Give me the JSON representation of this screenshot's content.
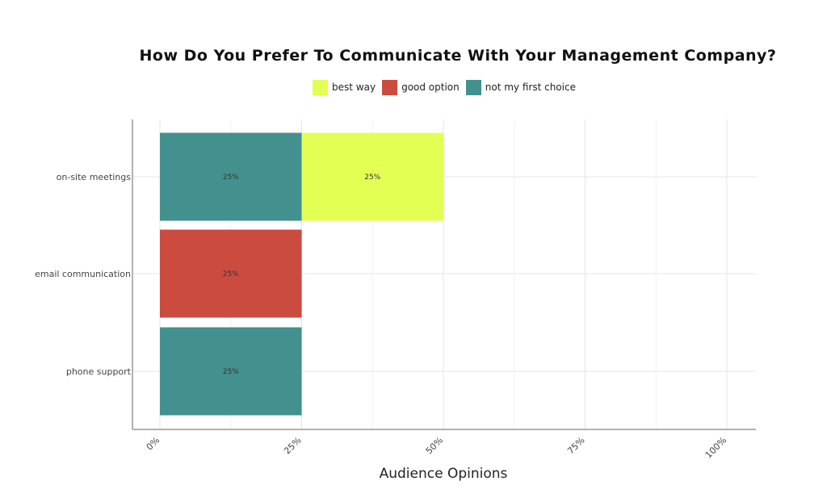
{
  "chart_data": {
    "type": "bar",
    "orientation": "horizontal",
    "stacked": true,
    "title": "How Do You Prefer To Communicate With Your Management Company?",
    "xlabel": "Audience Opinions",
    "ylabel": "",
    "categories": [
      "on-site meetings",
      "email communication",
      "phone support"
    ],
    "series": [
      {
        "name": "not my first choice",
        "color": "#43918F",
        "values": [
          25,
          0,
          25
        ]
      },
      {
        "name": "good option",
        "color": "#CB4B3F",
        "values": [
          0,
          25,
          0
        ]
      },
      {
        "name": "best way",
        "color": "#E4FF54",
        "values": [
          25,
          0,
          0
        ]
      }
    ],
    "legend_order": [
      "best way",
      "good option",
      "not my first choice"
    ],
    "xlim": [
      0,
      100
    ],
    "x_ticks": [
      "0%",
      "25%",
      "50%",
      "75%",
      "100%"
    ],
    "value_suffix": "%",
    "grid": true,
    "legend_position": "top"
  }
}
